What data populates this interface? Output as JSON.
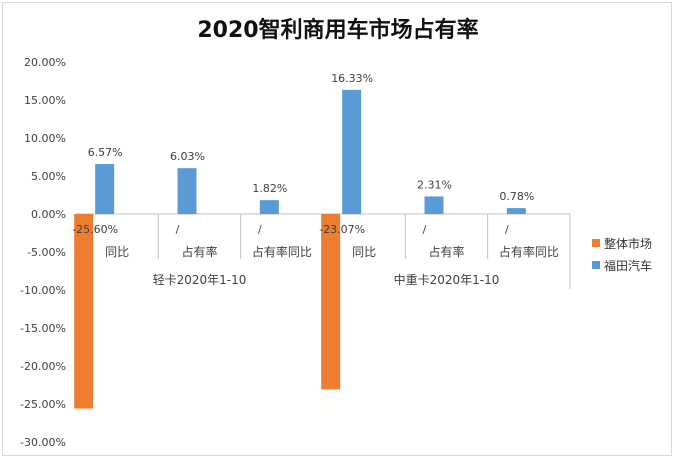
{
  "colors": {
    "market": "#ED7D31",
    "foton": "#5B9BD5"
  },
  "chart_data": {
    "type": "bar",
    "title": "2020智利商用车市场占有率",
    "ylim": [
      -0.3,
      0.2
    ],
    "yticks": [
      "20.00%",
      "15.00%",
      "10.00%",
      "5.00%",
      "0.00%",
      "-5.00%",
      "-10.00%",
      "-15.00%",
      "-20.00%",
      "-25.00%",
      "-30.00%"
    ],
    "ytick_values": [
      0.2,
      0.15,
      0.1,
      0.05,
      0.0,
      -0.05,
      -0.1,
      -0.15,
      -0.2,
      -0.25,
      -0.3
    ],
    "groups": [
      "轻卡2020年1-10",
      "中重卡2020年1-10"
    ],
    "categories": [
      "同比",
      "占有率",
      "占有率同比",
      "同比",
      "占有率",
      "占有率同比"
    ],
    "series": [
      {
        "name": "整体市场",
        "values": [
          -0.256,
          null,
          null,
          -0.2307,
          null,
          null
        ],
        "labels": [
          "-25.60%",
          "/",
          "/",
          "-23.07%",
          "/",
          "/"
        ]
      },
      {
        "name": "福田汽车",
        "values": [
          0.0657,
          0.0603,
          0.0182,
          0.1633,
          0.0231,
          0.0078
        ],
        "labels": [
          "6.57%",
          "6.03%",
          "1.82%",
          "16.33%",
          "2.31%",
          "0.78%"
        ]
      }
    ],
    "grid": false,
    "legend_position": "right"
  }
}
